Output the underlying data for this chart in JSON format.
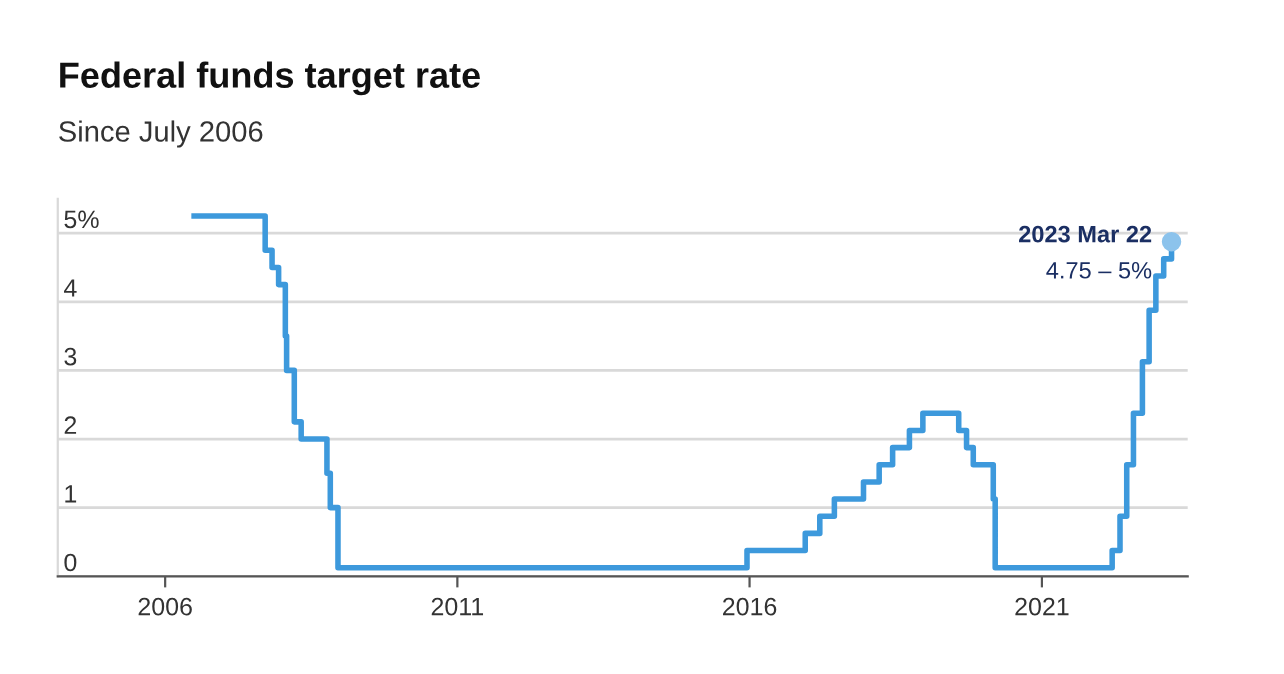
{
  "chart_data": {
    "type": "step",
    "title": "Federal funds target rate",
    "subtitle": "Since July 2006",
    "x": [
      "2006-07-01",
      "2007-09-18",
      "2007-10-31",
      "2007-12-11",
      "2008-01-22",
      "2008-01-30",
      "2008-03-18",
      "2008-04-30",
      "2008-10-08",
      "2008-10-29",
      "2008-12-16",
      "2015-12-16",
      "2016-12-14",
      "2017-03-15",
      "2017-06-14",
      "2017-12-13",
      "2018-03-21",
      "2018-06-13",
      "2018-09-26",
      "2018-12-19",
      "2019-07-31",
      "2019-09-18",
      "2019-10-30",
      "2020-03-03",
      "2020-03-15",
      "2022-03-16",
      "2022-05-04",
      "2022-06-15",
      "2022-07-27",
      "2022-09-21",
      "2022-11-02",
      "2022-12-14",
      "2023-02-01",
      "2023-03-22"
    ],
    "series": [
      {
        "color": "#3d99dc",
        "values": [
          5.25,
          4.75,
          4.5,
          4.25,
          3.5,
          3.0,
          2.25,
          2.0,
          1.5,
          1.0,
          0.125,
          0.375,
          0.625,
          0.875,
          1.125,
          1.375,
          1.625,
          1.875,
          2.125,
          2.375,
          2.125,
          1.875,
          1.625,
          1.125,
          0.125,
          0.375,
          0.875,
          1.625,
          2.375,
          3.125,
          3.875,
          4.375,
          4.625,
          4.875
        ]
      }
    ],
    "xlim": [
      "2004-03-01",
      "2023-07-01"
    ],
    "xticks": [
      {
        "value": "2006-01-01",
        "label": "2006"
      },
      {
        "value": "2011-01-01",
        "label": "2011"
      },
      {
        "value": "2016-01-01",
        "label": "2016"
      },
      {
        "value": "2021-01-01",
        "label": "2021"
      }
    ],
    "ylim": [
      0,
      5.5
    ],
    "yticks": [
      0,
      1,
      2,
      3,
      4,
      {
        "value": 5,
        "label": "5%"
      }
    ],
    "annotations": [
      {
        "text": "2023 Mar 22",
        "x": "2023-03-22",
        "y": 4.875
      },
      {
        "text": "4.75 – 5%",
        "x": "2023-03-22",
        "y": 4.875
      }
    ],
    "grid": "y",
    "legend": false,
    "marker": "none",
    "line_style": "solid"
  }
}
